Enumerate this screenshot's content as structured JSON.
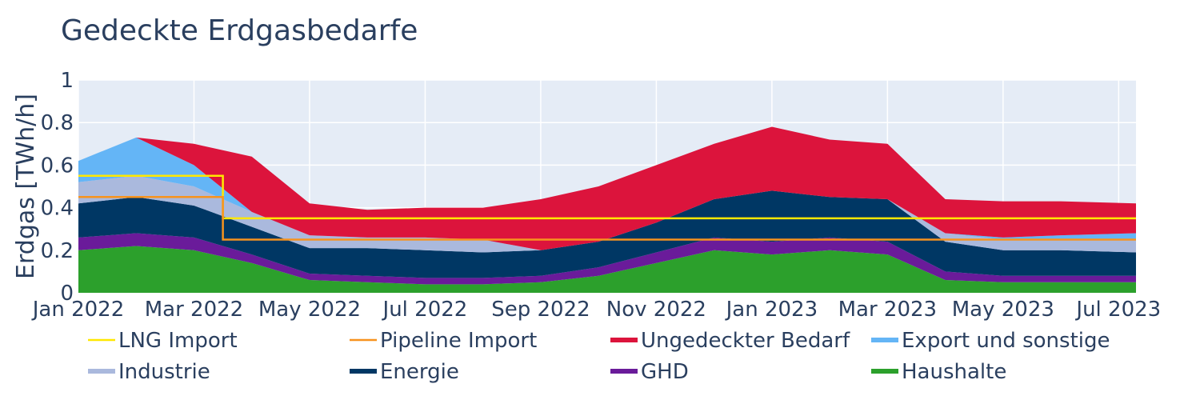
{
  "chart_data": {
    "type": "area",
    "title": "Gedeckte Erdgasbedarfe",
    "xlabel": "",
    "ylabel": "Erdgas [TWh/h]",
    "ylim": [
      0,
      1
    ],
    "grid": true,
    "legend_position": "bottom",
    "x_ticks": [
      "Jan 2022",
      "Mar 2022",
      "May 2022",
      "Jul 2022",
      "Sep 2022",
      "Nov 2022",
      "Jan 2023",
      "Mar 2023",
      "May 2023",
      "Jul 2023"
    ],
    "y_ticks": [
      {
        "value": 0,
        "label": "0"
      },
      {
        "value": 0.2,
        "label": "0.2"
      },
      {
        "value": 0.4,
        "label": "0.4"
      },
      {
        "value": 0.6,
        "label": "0.6"
      },
      {
        "value": 0.8,
        "label": "0.8"
      },
      {
        "value": 1,
        "label": "1"
      }
    ],
    "x_range_months": [
      0,
      18.3
    ],
    "legend": [
      {
        "name": "LNG Import",
        "color": "#ffe800",
        "symbol": "line"
      },
      {
        "name": "Pipeline Import",
        "color": "#f7931e",
        "symbol": "line"
      },
      {
        "name": "Ungedeckter Bedarf",
        "color": "#dc143c",
        "symbol": "area"
      },
      {
        "name": "Export und sonstige",
        "color": "#64b5f6",
        "symbol": "area"
      },
      {
        "name": "Industrie",
        "color": "#aab9dd",
        "symbol": "area"
      },
      {
        "name": "Energie",
        "color": "#003764",
        "symbol": "area"
      },
      {
        "name": "GHD",
        "color": "#6a1b9a",
        "symbol": "area"
      },
      {
        "name": "Haushalte",
        "color": "#2ca02c",
        "symbol": "area"
      }
    ],
    "series": [
      {
        "name": "Haushalte",
        "color": "#2ca02c",
        "x_months": [
          0,
          1,
          2,
          3,
          4,
          5,
          6,
          7,
          8,
          9,
          10,
          11,
          12,
          13,
          14,
          15,
          16,
          17,
          18.3
        ],
        "values": [
          0.2,
          0.22,
          0.2,
          0.14,
          0.06,
          0.05,
          0.04,
          0.04,
          0.05,
          0.08,
          0.14,
          0.2,
          0.18,
          0.2,
          0.18,
          0.06,
          0.05,
          0.05,
          0.05
        ]
      },
      {
        "name": "GHD",
        "color": "#6a1b9a",
        "x_months": [
          0,
          1,
          2,
          3,
          4,
          5,
          6,
          7,
          8,
          9,
          10,
          11,
          12,
          13,
          14,
          15,
          16,
          17,
          18.3
        ],
        "values": [
          0.06,
          0.06,
          0.06,
          0.04,
          0.03,
          0.03,
          0.03,
          0.03,
          0.03,
          0.04,
          0.05,
          0.06,
          0.06,
          0.06,
          0.06,
          0.04,
          0.03,
          0.03,
          0.03
        ]
      },
      {
        "name": "Energie",
        "color": "#003764",
        "x_months": [
          0,
          1,
          2,
          3,
          4,
          5,
          6,
          7,
          8,
          9,
          10,
          11,
          12,
          13,
          14,
          15,
          16,
          17,
          18.3
        ],
        "values": [
          0.16,
          0.17,
          0.15,
          0.13,
          0.12,
          0.13,
          0.13,
          0.12,
          0.12,
          0.12,
          0.14,
          0.18,
          0.24,
          0.19,
          0.2,
          0.14,
          0.12,
          0.12,
          0.11
        ]
      },
      {
        "name": "Industrie",
        "color": "#aab9dd",
        "x_months": [
          0,
          1,
          2,
          3,
          4,
          5,
          6,
          7,
          8,
          9,
          10,
          11,
          12,
          13,
          14,
          15,
          16,
          17,
          18.3
        ],
        "values": [
          0.1,
          0.1,
          0.09,
          0.07,
          0.06,
          0.05,
          0.06,
          0.06,
          0.0,
          0.0,
          0.0,
          0.0,
          0.0,
          0.0,
          0.0,
          0.04,
          0.05,
          0.05,
          0.06
        ]
      },
      {
        "name": "Export und sonstige",
        "color": "#64b5f6",
        "x_months": [
          0,
          1,
          2,
          3,
          4,
          5,
          6,
          7,
          8,
          9,
          10,
          11,
          12,
          13,
          14,
          15,
          16,
          17,
          18.3
        ],
        "values": [
          0.1,
          0.18,
          0.1,
          0.0,
          0.0,
          0.0,
          0.0,
          0.0,
          0.0,
          0.0,
          0.0,
          0.0,
          0.0,
          0.0,
          0.0,
          0.0,
          0.01,
          0.02,
          0.03
        ]
      },
      {
        "name": "Ungedeckter Bedarf",
        "color": "#dc143c",
        "x_months": [
          0,
          1,
          2,
          3,
          4,
          5,
          6,
          7,
          8,
          9,
          10,
          11,
          12,
          13,
          14,
          15,
          16,
          17,
          18.3
        ],
        "values": [
          0.0,
          0.0,
          0.1,
          0.26,
          0.15,
          0.13,
          0.14,
          0.15,
          0.24,
          0.26,
          0.27,
          0.26,
          0.3,
          0.27,
          0.26,
          0.16,
          0.17,
          0.16,
          0.14
        ]
      },
      {
        "name": "LNG Import",
        "color": "#ffe800",
        "x_months": [
          0,
          2.5,
          2.5,
          18.3
        ],
        "values": [
          0.55,
          0.55,
          0.35,
          0.35
        ]
      },
      {
        "name": "Pipeline Import",
        "color": "#f7931e",
        "x_months": [
          0,
          2.5,
          2.5,
          18.3
        ],
        "values": [
          0.45,
          0.45,
          0.25,
          0.25
        ]
      }
    ]
  }
}
